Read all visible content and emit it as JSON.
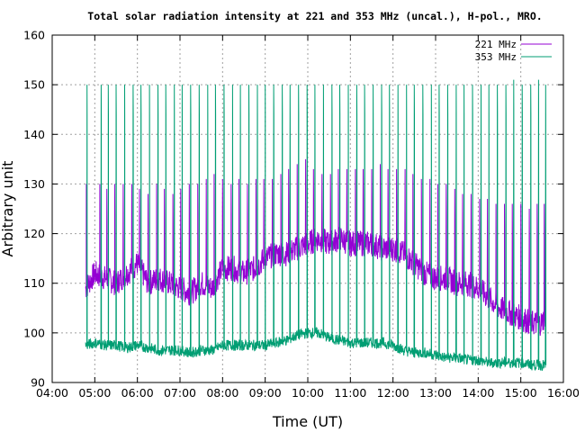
{
  "chart_data": {
    "type": "line",
    "title": "Total solar radiation intensity at 221 and 353 MHz (uncal.), H-pol., MRO.",
    "xlabel": "Time (UT)",
    "ylabel": "Arbitrary unit",
    "xlim": [
      "04:00",
      "16:00"
    ],
    "ylim": [
      90,
      160
    ],
    "x_ticks": [
      "04:00",
      "05:00",
      "06:00",
      "07:00",
      "08:00",
      "09:00",
      "10:00",
      "11:00",
      "12:00",
      "13:00",
      "14:00",
      "15:00",
      "16:00"
    ],
    "y_ticks": [
      "90",
      "100",
      "110",
      "120",
      "130",
      "140",
      "150",
      "160"
    ],
    "grid": true,
    "legend_position": "top-right",
    "series": [
      {
        "name": "221 MHz",
        "color": "#9400d3",
        "x": [
          "04:47",
          "05:00",
          "05:15",
          "05:30",
          "05:45",
          "06:00",
          "06:15",
          "06:30",
          "06:45",
          "07:00",
          "07:15",
          "07:30",
          "07:45",
          "08:00",
          "08:15",
          "08:30",
          "08:45",
          "09:00",
          "09:15",
          "09:30",
          "09:45",
          "10:00",
          "10:15",
          "10:30",
          "10:45",
          "11:00",
          "11:15",
          "11:30",
          "11:45",
          "12:00",
          "12:15",
          "12:30",
          "12:45",
          "13:00",
          "13:15",
          "13:30",
          "13:45",
          "14:00",
          "14:15",
          "14:30",
          "14:45",
          "15:00",
          "15:15",
          "15:30",
          "15:35"
        ],
        "y": [
          109,
          112,
          111,
          110,
          112,
          114,
          110,
          111,
          110,
          109,
          108,
          110,
          109,
          113,
          113,
          112,
          113,
          115,
          116,
          116,
          117,
          118,
          119,
          118,
          119,
          118,
          118,
          118,
          117,
          117,
          116,
          114,
          112,
          111,
          111,
          110,
          110,
          109,
          107,
          105,
          104,
          103,
          102,
          102,
          104
        ]
      },
      {
        "name": "353 MHz",
        "color": "#009e73",
        "x": [
          "04:47",
          "05:00",
          "05:15",
          "05:30",
          "05:45",
          "06:00",
          "06:15",
          "06:30",
          "06:45",
          "07:00",
          "07:15",
          "07:30",
          "07:45",
          "08:00",
          "08:15",
          "08:30",
          "08:45",
          "09:00",
          "09:15",
          "09:30",
          "09:45",
          "10:00",
          "10:15",
          "10:30",
          "10:45",
          "11:00",
          "11:15",
          "11:30",
          "11:45",
          "12:00",
          "12:15",
          "12:30",
          "12:45",
          "13:00",
          "13:15",
          "13:30",
          "13:45",
          "14:00",
          "14:15",
          "14:30",
          "14:45",
          "15:00",
          "15:15",
          "15:30",
          "15:35"
        ],
        "y": [
          97.5,
          98,
          97.5,
          97.5,
          97,
          97.5,
          97,
          96.5,
          96.5,
          96.5,
          96,
          96.5,
          96.5,
          97.5,
          97.5,
          97.5,
          97.5,
          97.5,
          98,
          98.5,
          99.5,
          100,
          100,
          99,
          98.5,
          98,
          98,
          98,
          98,
          97.5,
          96.5,
          96,
          96,
          95.5,
          95,
          95,
          94.5,
          94.5,
          94,
          94,
          94,
          94,
          93.5,
          93.5,
          93.5
        ]
      }
    ],
    "spikes": {
      "221 MHz": {
        "times": [
          "04:48",
          "05:07",
          "05:17",
          "05:28",
          "05:40",
          "05:52",
          "06:03",
          "06:15",
          "06:27",
          "06:38",
          "06:50",
          "07:01",
          "07:13",
          "07:25",
          "07:37",
          "07:48",
          "08:00",
          "08:12",
          "08:23",
          "08:35",
          "08:47",
          "08:58",
          "09:10",
          "09:22",
          "09:33",
          "09:45",
          "09:57",
          "10:08",
          "10:20",
          "10:32",
          "10:43",
          "10:55",
          "11:07",
          "11:18",
          "11:30",
          "11:42",
          "11:53",
          "12:05",
          "12:17",
          "12:28",
          "12:40",
          "12:52",
          "13:03",
          "13:15",
          "13:27",
          "13:38",
          "13:50",
          "14:02",
          "14:13",
          "14:25",
          "14:37",
          "14:48",
          "15:00",
          "15:12",
          "15:23",
          "15:33"
        ],
        "peaks": [
          130,
          130,
          129,
          130,
          130,
          130,
          129,
          128,
          130,
          129,
          128,
          129,
          130,
          130,
          131,
          132,
          131,
          130,
          131,
          130,
          131,
          131,
          131,
          132,
          133,
          134,
          135,
          133,
          132,
          132,
          133,
          133,
          133,
          133,
          133,
          134,
          133,
          133,
          133,
          132,
          131,
          131,
          130,
          130,
          129,
          128,
          128,
          127,
          127,
          126,
          126,
          126,
          126,
          125,
          126,
          126
        ]
      },
      "353 MHz": {
        "times": [
          "04:49",
          "05:09",
          "05:19",
          "05:30",
          "05:42",
          "05:54",
          "06:05",
          "06:17",
          "06:29",
          "06:40",
          "06:52",
          "07:03",
          "07:15",
          "07:27",
          "07:39",
          "07:50",
          "08:02",
          "08:14",
          "08:25",
          "08:37",
          "08:49",
          "09:00",
          "09:12",
          "09:24",
          "09:35",
          "09:47",
          "09:59",
          "10:10",
          "10:22",
          "10:34",
          "10:45",
          "10:57",
          "11:09",
          "11:20",
          "11:32",
          "11:44",
          "11:55",
          "12:07",
          "12:19",
          "12:30",
          "12:42",
          "12:54",
          "13:05",
          "13:17",
          "13:29",
          "13:40",
          "13:52",
          "14:04",
          "14:15",
          "14:27",
          "14:39",
          "14:50",
          "15:02",
          "15:14",
          "15:25",
          "15:35"
        ],
        "peaks": [
          150,
          150,
          150,
          150,
          150,
          150,
          150,
          150,
          150,
          150,
          150,
          150,
          150,
          150,
          150,
          150,
          150,
          150,
          150,
          150,
          150,
          150,
          150,
          150,
          150,
          150,
          150,
          150,
          150,
          150,
          150,
          150,
          150,
          150,
          150,
          150,
          150,
          150,
          150,
          150,
          150,
          150,
          150,
          150,
          150,
          150,
          150,
          150,
          150,
          150,
          150,
          151,
          150,
          150,
          151,
          150
        ]
      }
    }
  }
}
